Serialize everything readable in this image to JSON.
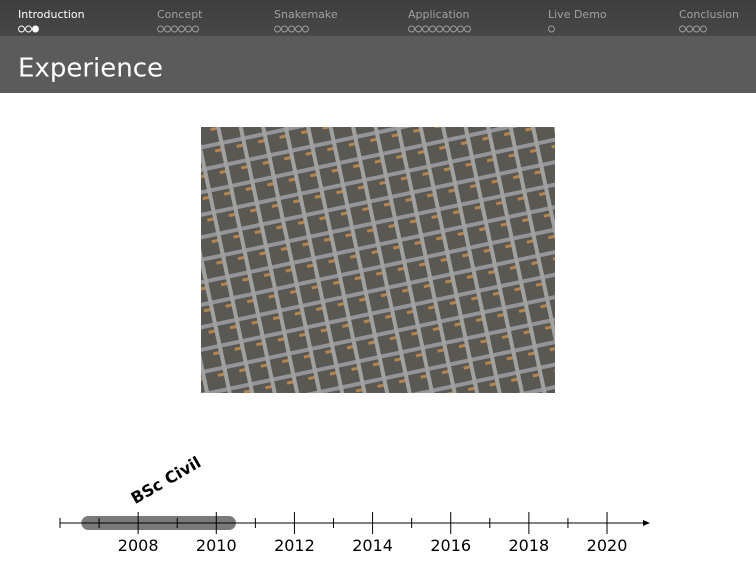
{
  "nav": {
    "sections": [
      {
        "label": "Introduction",
        "dots": 3,
        "current_dot": 3
      },
      {
        "label": "Concept",
        "dots": 6
      },
      {
        "label": "Snakemake",
        "dots": 5
      },
      {
        "label": "Application",
        "dots": 9
      },
      {
        "label": "Live Demo",
        "dots": 1
      },
      {
        "label": "Conclusion",
        "dots": 4
      }
    ]
  },
  "slide": {
    "title": "Experience"
  },
  "timeline": {
    "xlim": [
      2006,
      2021.1
    ],
    "labeled_ticks": [
      2008,
      2010,
      2012,
      2014,
      2016,
      2018,
      2020
    ],
    "minor_ticks": [
      2006,
      2007,
      2009,
      2011,
      2013,
      2015,
      2017,
      2019
    ],
    "bars": [
      {
        "label": "BSc Civil",
        "start": 2006.7,
        "end": 2010.35
      }
    ]
  }
}
